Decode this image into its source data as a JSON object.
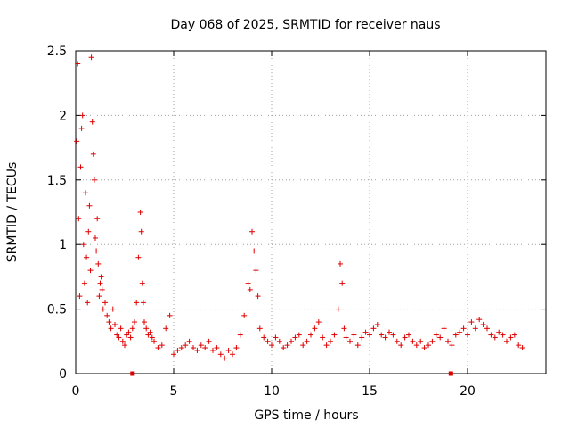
{
  "chart_data": {
    "type": "scatter",
    "title": "Day 068 of 2025, SRMTID for receiver naus",
    "xlabel": "GPS time / hours",
    "ylabel": "SRMTID / TECUs",
    "xlim": [
      0,
      24
    ],
    "ylim": [
      0,
      2.5
    ],
    "xticks": [
      0,
      5,
      10,
      15,
      20
    ],
    "yticks": [
      0,
      0.5,
      1,
      1.5,
      2,
      2.5
    ],
    "ytick_labels": [
      "0",
      "0.5",
      "1",
      "1.5",
      "2",
      "2.5"
    ],
    "xtick_labels": [
      "0",
      "5",
      "10",
      "15",
      "20"
    ],
    "grid": true,
    "marker": "plus",
    "color": "#e00000",
    "series": [
      {
        "name": "SRMTID",
        "x": [
          0.05,
          0.1,
          0.15,
          0.2,
          0.25,
          0.3,
          0.35,
          0.4,
          0.45,
          0.5,
          0.55,
          0.6,
          0.65,
          0.7,
          0.75,
          0.8,
          0.85,
          0.9,
          0.95,
          1.0,
          1.05,
          1.1,
          1.15,
          1.2,
          1.25,
          1.3,
          1.35,
          1.4,
          1.5,
          1.6,
          1.7,
          1.8,
          1.9,
          2.0,
          2.1,
          2.2,
          2.3,
          2.4,
          2.5,
          2.6,
          2.7,
          2.8,
          2.9,
          3.0,
          3.1,
          3.2,
          3.3,
          3.35,
          3.4,
          3.45,
          3.5,
          3.6,
          3.7,
          3.8,
          3.9,
          4.0,
          4.2,
          4.4,
          4.6,
          4.8,
          5.0,
          5.2,
          5.4,
          5.6,
          5.8,
          6.0,
          6.2,
          6.4,
          6.6,
          6.8,
          7.0,
          7.2,
          7.4,
          7.6,
          7.8,
          8.0,
          8.2,
          8.4,
          8.6,
          8.8,
          8.9,
          9.0,
          9.1,
          9.2,
          9.3,
          9.4,
          9.6,
          9.8,
          10.0,
          10.2,
          10.4,
          10.6,
          10.8,
          11.0,
          11.2,
          11.4,
          11.6,
          11.8,
          12.0,
          12.2,
          12.4,
          12.6,
          12.8,
          13.0,
          13.2,
          13.4,
          13.5,
          13.6,
          13.7,
          13.8,
          14.0,
          14.2,
          14.4,
          14.6,
          14.8,
          15.0,
          15.2,
          15.4,
          15.6,
          15.8,
          16.0,
          16.2,
          16.4,
          16.6,
          16.8,
          17.0,
          17.2,
          17.4,
          17.6,
          17.8,
          18.0,
          18.2,
          18.4,
          18.6,
          18.8,
          19.0,
          19.2,
          19.4,
          19.6,
          19.8,
          20.0,
          20.2,
          20.4,
          20.6,
          20.8,
          21.0,
          21.2,
          21.4,
          21.6,
          21.8,
          22.0,
          22.2,
          22.4,
          22.6,
          22.8
        ],
        "y": [
          1.8,
          2.4,
          1.2,
          0.6,
          1.6,
          1.9,
          2.0,
          1.0,
          0.7,
          1.4,
          0.9,
          0.55,
          1.1,
          1.3,
          0.8,
          2.45,
          1.95,
          1.7,
          1.5,
          1.05,
          0.95,
          1.2,
          0.85,
          0.6,
          0.7,
          0.75,
          0.65,
          0.5,
          0.55,
          0.45,
          0.4,
          0.35,
          0.5,
          0.38,
          0.3,
          0.28,
          0.35,
          0.25,
          0.22,
          0.3,
          0.32,
          0.28,
          0.35,
          0.4,
          0.55,
          0.9,
          1.25,
          1.1,
          0.7,
          0.55,
          0.4,
          0.35,
          0.3,
          0.32,
          0.28,
          0.25,
          0.2,
          0.22,
          0.35,
          0.45,
          0.15,
          0.18,
          0.2,
          0.22,
          0.25,
          0.2,
          0.18,
          0.22,
          0.2,
          0.25,
          0.18,
          0.2,
          0.15,
          0.12,
          0.18,
          0.15,
          0.2,
          0.3,
          0.45,
          0.7,
          0.65,
          1.1,
          0.95,
          0.8,
          0.6,
          0.35,
          0.28,
          0.25,
          0.22,
          0.28,
          0.25,
          0.2,
          0.22,
          0.25,
          0.28,
          0.3,
          0.22,
          0.25,
          0.3,
          0.35,
          0.4,
          0.28,
          0.22,
          0.25,
          0.3,
          0.5,
          0.85,
          0.7,
          0.35,
          0.28,
          0.25,
          0.3,
          0.22,
          0.28,
          0.32,
          0.3,
          0.35,
          0.38,
          0.3,
          0.28,
          0.32,
          0.3,
          0.25,
          0.22,
          0.28,
          0.3,
          0.25,
          0.22,
          0.25,
          0.2,
          0.22,
          0.25,
          0.3,
          0.28,
          0.35,
          0.25,
          0.22,
          0.3,
          0.32,
          0.35,
          0.3,
          0.4,
          0.35,
          0.42,
          0.38,
          0.35,
          0.3,
          0.28,
          0.32,
          0.3,
          0.25,
          0.28,
          0.3,
          0.22,
          0.2
        ]
      }
    ],
    "axis_markers_x": [
      2.9,
      19.15
    ]
  }
}
